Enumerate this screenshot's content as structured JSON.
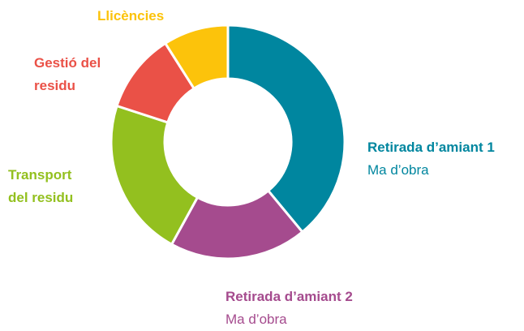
{
  "chart_data": {
    "type": "donut",
    "categories": [
      "Retirada d’amiant 1",
      "Retirada d’amiant 2",
      "Transport del residu",
      "Gestió del residu",
      "Llicències"
    ],
    "details": [
      "Ma d’obra",
      "Ma d’obra",
      null,
      null,
      null
    ],
    "values": [
      39,
      19,
      22,
      11,
      9
    ],
    "colors": [
      "#00869f",
      "#a54b8e",
      "#93c01f",
      "#ea5147",
      "#fcc30b"
    ]
  }
}
